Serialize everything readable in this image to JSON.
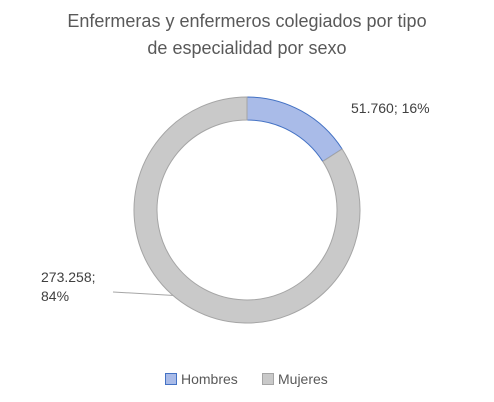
{
  "chart_data": {
    "type": "donut",
    "title": "Enfermeras y enfermeros colegiados por tipo de especialidad por sexo",
    "categories": [
      "Hombres",
      "Mujeres"
    ],
    "values": [
      51760,
      273258
    ],
    "value_labels": [
      "51.760; 16%",
      "273.258; 84%"
    ],
    "colors": [
      "#a9bbe8",
      "#c9c9c9"
    ],
    "legend": "bottom"
  }
}
